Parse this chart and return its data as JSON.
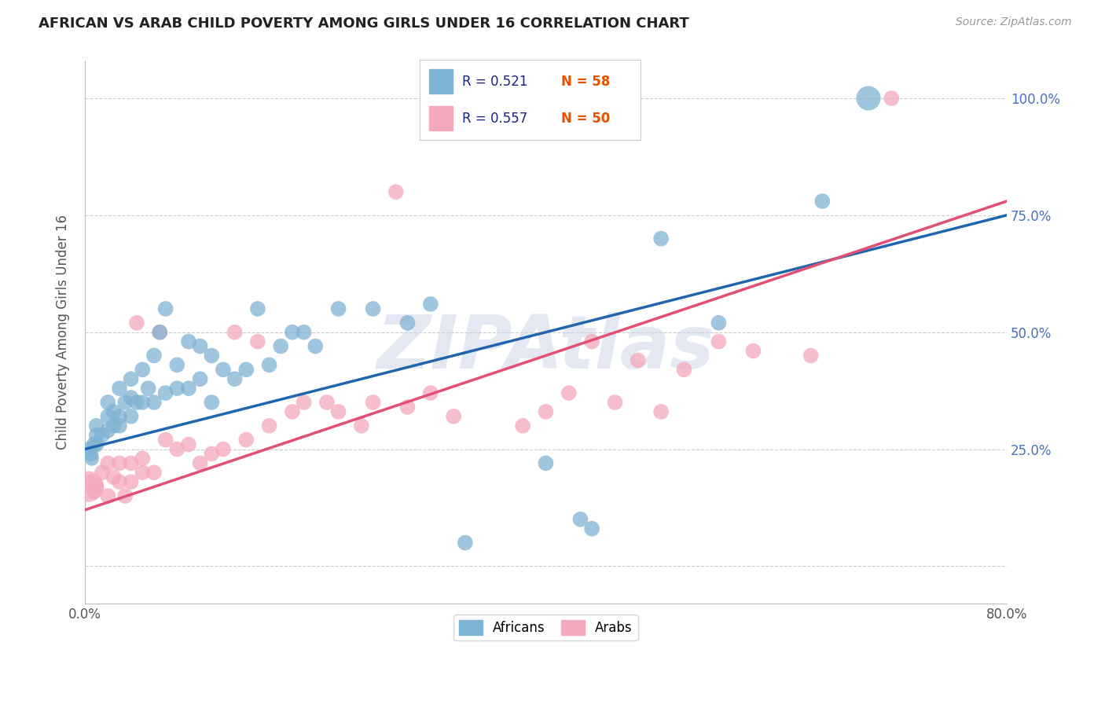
{
  "title": "AFRICAN VS ARAB CHILD POVERTY AMONG GIRLS UNDER 16 CORRELATION CHART",
  "source": "Source: ZipAtlas.com",
  "ylabel": "Child Poverty Among Girls Under 16",
  "watermark": "ZIPAtlas",
  "african_color": "#7fb3d3",
  "arab_color": "#f4a8bc",
  "african_line_color": "#2166ac",
  "arab_line_color": "#e05075",
  "background_color": "#ffffff",
  "grid_color": "#cccccc",
  "title_color": "#222222",
  "right_tick_color": "#4472c4",
  "xlim": [
    0.0,
    0.8
  ],
  "ylim": [
    -0.08,
    1.08
  ],
  "xtick_positions": [
    0.0,
    0.2,
    0.4,
    0.6,
    0.8
  ],
  "xticklabels": [
    "0.0%",
    "",
    "",
    "",
    "80.0%"
  ],
  "ytick_positions": [
    0.0,
    0.25,
    0.5,
    0.75,
    1.0
  ],
  "yticklabels_right": [
    "",
    "25.0%",
    "50.0%",
    "75.0%",
    "100.0%"
  ],
  "legend_r_african": "0.521",
  "legend_n_african": "58",
  "legend_r_arab": "0.557",
  "legend_n_arab": "50",
  "africans_x": [
    0.003,
    0.005,
    0.006,
    0.008,
    0.01,
    0.01,
    0.01,
    0.015,
    0.02,
    0.02,
    0.02,
    0.025,
    0.025,
    0.03,
    0.03,
    0.03,
    0.035,
    0.04,
    0.04,
    0.04,
    0.045,
    0.05,
    0.05,
    0.055,
    0.06,
    0.06,
    0.065,
    0.07,
    0.07,
    0.08,
    0.08,
    0.09,
    0.09,
    0.1,
    0.1,
    0.11,
    0.11,
    0.12,
    0.13,
    0.14,
    0.15,
    0.16,
    0.17,
    0.18,
    0.19,
    0.2,
    0.22,
    0.25,
    0.28,
    0.3,
    0.33,
    0.4,
    0.43,
    0.44,
    0.5,
    0.55,
    0.64,
    0.68
  ],
  "africans_y": [
    0.25,
    0.24,
    0.23,
    0.26,
    0.26,
    0.28,
    0.3,
    0.28,
    0.29,
    0.32,
    0.35,
    0.3,
    0.33,
    0.3,
    0.32,
    0.38,
    0.35,
    0.32,
    0.36,
    0.4,
    0.35,
    0.35,
    0.42,
    0.38,
    0.35,
    0.45,
    0.5,
    0.37,
    0.55,
    0.38,
    0.43,
    0.38,
    0.48,
    0.4,
    0.47,
    0.35,
    0.45,
    0.42,
    0.4,
    0.42,
    0.55,
    0.43,
    0.47,
    0.5,
    0.5,
    0.47,
    0.55,
    0.55,
    0.52,
    0.56,
    0.05,
    0.22,
    0.1,
    0.08,
    0.7,
    0.52,
    0.78,
    1.0
  ],
  "africans_size": [
    180,
    200,
    180,
    200,
    200,
    200,
    200,
    200,
    200,
    200,
    200,
    200,
    200,
    200,
    200,
    200,
    200,
    200,
    200,
    200,
    200,
    200,
    200,
    200,
    200,
    200,
    200,
    200,
    200,
    200,
    200,
    200,
    200,
    200,
    200,
    200,
    200,
    200,
    200,
    200,
    200,
    200,
    200,
    200,
    200,
    200,
    200,
    200,
    200,
    200,
    200,
    200,
    200,
    200,
    200,
    200,
    200,
    500
  ],
  "arabs_x": [
    0.003,
    0.005,
    0.008,
    0.01,
    0.015,
    0.02,
    0.02,
    0.025,
    0.03,
    0.03,
    0.035,
    0.04,
    0.04,
    0.045,
    0.05,
    0.05,
    0.06,
    0.065,
    0.07,
    0.08,
    0.09,
    0.1,
    0.11,
    0.12,
    0.13,
    0.14,
    0.15,
    0.16,
    0.18,
    0.19,
    0.21,
    0.22,
    0.24,
    0.25,
    0.27,
    0.28,
    0.3,
    0.32,
    0.38,
    0.4,
    0.42,
    0.44,
    0.46,
    0.48,
    0.5,
    0.52,
    0.55,
    0.58,
    0.63,
    0.7
  ],
  "arabs_y": [
    0.17,
    0.18,
    0.16,
    0.17,
    0.2,
    0.15,
    0.22,
    0.19,
    0.18,
    0.22,
    0.15,
    0.18,
    0.22,
    0.52,
    0.2,
    0.23,
    0.2,
    0.5,
    0.27,
    0.25,
    0.26,
    0.22,
    0.24,
    0.25,
    0.5,
    0.27,
    0.48,
    0.3,
    0.33,
    0.35,
    0.35,
    0.33,
    0.3,
    0.35,
    0.8,
    0.34,
    0.37,
    0.32,
    0.3,
    0.33,
    0.37,
    0.48,
    0.35,
    0.44,
    0.33,
    0.42,
    0.48,
    0.46,
    0.45,
    1.0
  ],
  "arabs_size": [
    800,
    200,
    200,
    200,
    200,
    200,
    200,
    200,
    200,
    200,
    200,
    200,
    200,
    200,
    200,
    200,
    200,
    200,
    200,
    200,
    200,
    200,
    200,
    200,
    200,
    200,
    200,
    200,
    200,
    200,
    200,
    200,
    200,
    200,
    200,
    200,
    200,
    200,
    200,
    200,
    200,
    200,
    200,
    200,
    200,
    200,
    200,
    200,
    200,
    200
  ]
}
